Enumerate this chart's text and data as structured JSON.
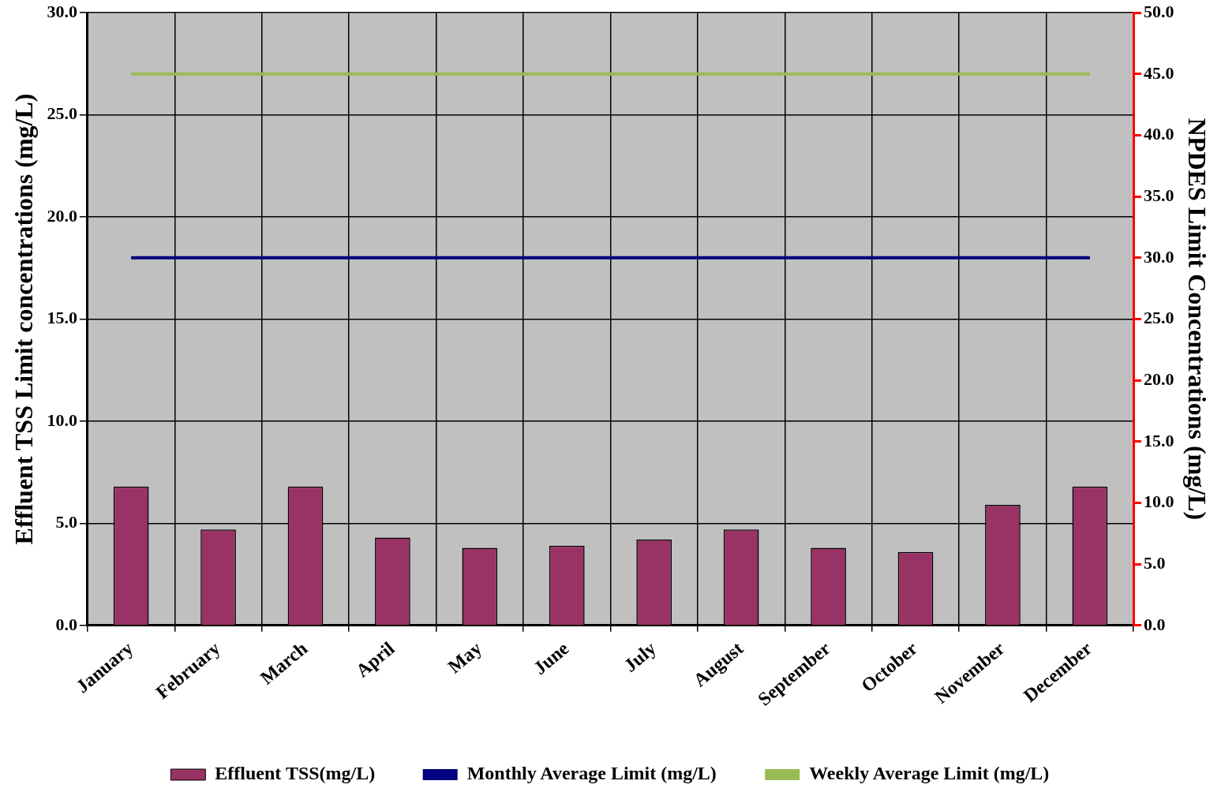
{
  "chart_data": {
    "type": "bar",
    "ylabel": "Effluent TSS Limit concentrations (mg/L)",
    "y2label": "NPDES Limit Concentrations (mg/L)",
    "categories": [
      "January",
      "February",
      "March",
      "April",
      "May",
      "June",
      "July",
      "August",
      "September",
      "October",
      "November",
      "December"
    ],
    "series": [
      {
        "name": "Effluent TSS(mg/L)",
        "color": "#993366",
        "values": [
          6.8,
          4.7,
          6.8,
          4.3,
          3.8,
          3.9,
          4.2,
          4.7,
          3.8,
          3.6,
          5.9,
          6.8
        ]
      },
      {
        "name": "Monthly Average Limit (mg/L)",
        "type": "line",
        "axis": "y2",
        "color": "#000080",
        "values": [
          30,
          30,
          30,
          30,
          30,
          30,
          30,
          30,
          30,
          30,
          30,
          30
        ]
      },
      {
        "name": "Weekly Average Limit (mg/L)",
        "type": "line",
        "axis": "y2",
        "color": "#99bb55",
        "values": [
          45,
          45,
          45,
          45,
          45,
          45,
          45,
          45,
          45,
          45,
          45,
          45
        ]
      }
    ],
    "ylim": [
      0,
      30
    ],
    "yticks": [
      {
        "value": 0,
        "label": "0.0"
      },
      {
        "value": 5,
        "label": "5.0"
      },
      {
        "value": 10,
        "label": "10.0"
      },
      {
        "value": 15,
        "label": "15.0"
      },
      {
        "value": 20,
        "label": "20.0"
      },
      {
        "value": 25,
        "label": "25.0"
      },
      {
        "value": 30,
        "label": "30.0"
      }
    ],
    "y2lim": [
      0,
      50
    ],
    "y2ticks": [
      {
        "value": 0,
        "label": "0.0"
      },
      {
        "value": 5,
        "label": "5.0"
      },
      {
        "value": 10,
        "label": "10.0"
      },
      {
        "value": 15,
        "label": "15.0"
      },
      {
        "value": 20,
        "label": "20.0"
      },
      {
        "value": 25,
        "label": "25.0"
      },
      {
        "value": 30,
        "label": "30.0"
      },
      {
        "value": 35,
        "label": "35.0"
      },
      {
        "value": 40,
        "label": "40.0"
      },
      {
        "value": 45,
        "label": "45.0"
      },
      {
        "value": 50,
        "label": "50.0"
      }
    ],
    "grid": true,
    "legend": "bottom",
    "marker": "none",
    "line_style": "solid"
  }
}
